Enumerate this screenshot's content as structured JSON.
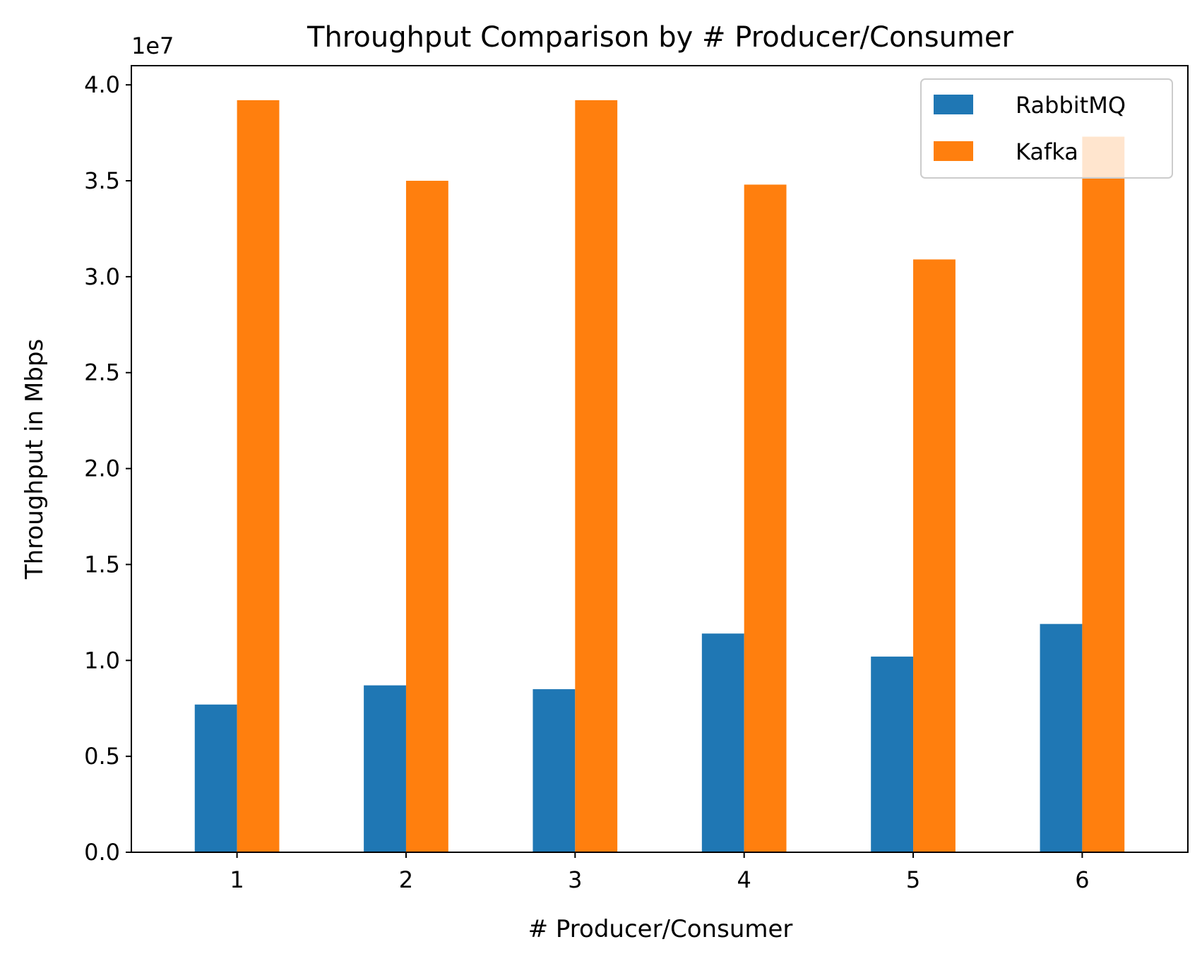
{
  "chart_data": {
    "type": "bar",
    "title": "Throughput Comparison by # Producer/Consumer",
    "xlabel": "# Producer/Consumer",
    "ylabel": "Throughput in Mbps",
    "y_offset_label": "1e7",
    "y_scale_factor": 10000000,
    "categories": [
      "1",
      "2",
      "3",
      "4",
      "5",
      "6"
    ],
    "ylim": [
      0,
      41000000
    ],
    "yticks": [
      0,
      5000000,
      10000000,
      15000000,
      20000000,
      25000000,
      30000000,
      35000000,
      40000000
    ],
    "ytick_labels": [
      "0.0",
      "0.5",
      "1.0",
      "1.5",
      "2.0",
      "2.5",
      "3.0",
      "3.5",
      "4.0"
    ],
    "grid": false,
    "legend_position": "top-right",
    "series": [
      {
        "name": "RabbitMQ",
        "color": "#1f77b4",
        "values": [
          7700000,
          8700000,
          8500000,
          11400000,
          10200000,
          11900000
        ]
      },
      {
        "name": "Kafka",
        "color": "#ff7f0e",
        "values": [
          39200000,
          35000000,
          39200000,
          34800000,
          30900000,
          37300000
        ]
      }
    ]
  }
}
